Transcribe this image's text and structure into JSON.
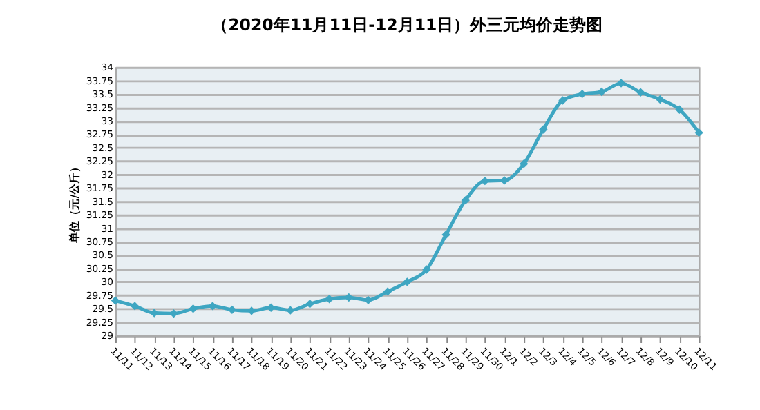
{
  "chart_data": {
    "type": "line",
    "title": "（2020年11月11日-12月11日）外三元均价走势图",
    "ylabel": "单位（元/公斤）",
    "categories": [
      "11/11",
      "11/12",
      "11/13",
      "11/14",
      "11/15",
      "11/16",
      "11/17",
      "11/18",
      "11/19",
      "11/20",
      "11/21",
      "11/22",
      "11/23",
      "11/24",
      "11/25",
      "11/26",
      "11/27",
      "11/28",
      "11/29",
      "11/30",
      "12/1",
      "12/2",
      "12/3",
      "12/4",
      "12/5",
      "12/6",
      "12/7",
      "12/8",
      "12/9",
      "12/10",
      "12/11"
    ],
    "series": [
      {
        "color": "#3ea6c2",
        "values": [
          29.65,
          29.55,
          29.42,
          29.41,
          29.5,
          29.55,
          29.48,
          29.46,
          29.52,
          29.47,
          29.59,
          29.68,
          29.71,
          29.66,
          29.82,
          30.0,
          30.23,
          30.88,
          31.52,
          31.88,
          31.89,
          32.2,
          32.84,
          33.38,
          33.5,
          33.54,
          33.7,
          33.53,
          33.4,
          33.21,
          32.78
        ]
      }
    ],
    "ylim": [
      29,
      34
    ],
    "yticks": [
      29,
      29.25,
      29.5,
      29.75,
      30,
      30.25,
      30.5,
      30.75,
      31,
      31.25,
      31.5,
      31.75,
      32,
      32.25,
      32.5,
      32.75,
      33,
      33.25,
      33.5,
      33.75,
      34
    ],
    "grid": "y",
    "marker": "diamond",
    "line_style": "solid"
  }
}
